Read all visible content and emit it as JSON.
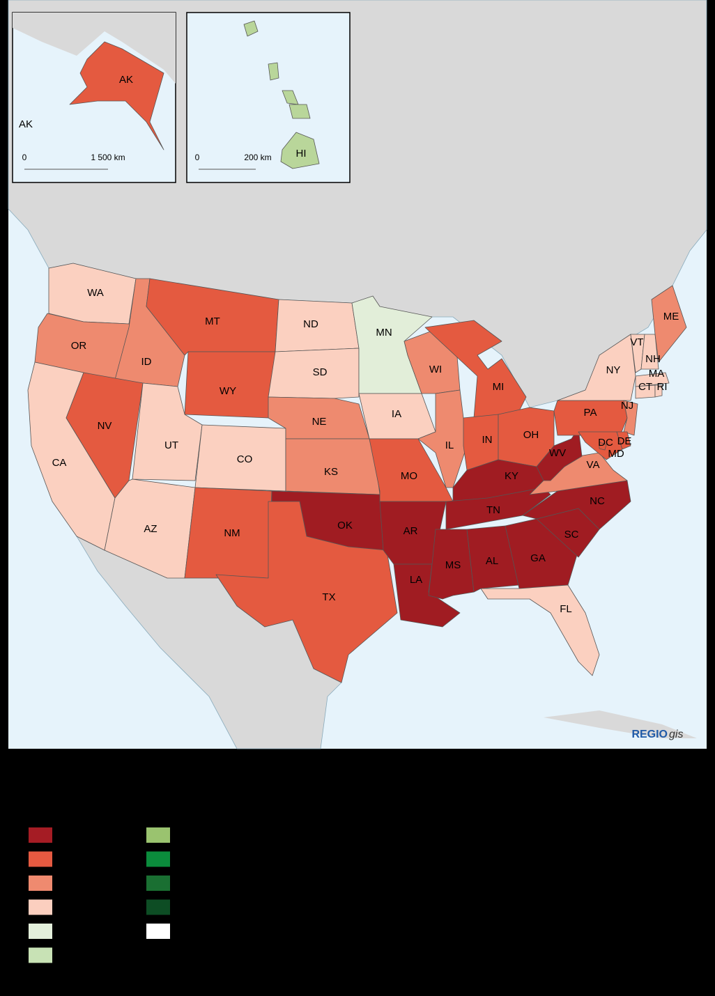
{
  "alaska_inset": {
    "label": "AK",
    "scale_start": "0",
    "scale_end": "1 500 km"
  },
  "hawaii_inset": {
    "scale_start": "0",
    "scale_end": "200 km"
  },
  "states": [
    {
      "label": "WA",
      "color": "#fbd0c0"
    },
    {
      "label": "OR",
      "color": "#ee8a6f"
    },
    {
      "label": "CA",
      "color": "#fbd0c0"
    },
    {
      "label": "ID",
      "color": "#ee8a6f"
    },
    {
      "label": "NV",
      "color": "#e45a40"
    },
    {
      "label": "MT",
      "color": "#e45a40"
    },
    {
      "label": "WY",
      "color": "#e45a40"
    },
    {
      "label": "UT",
      "color": "#fbd0c0"
    },
    {
      "label": "CO",
      "color": "#fbd0c0"
    },
    {
      "label": "AZ",
      "color": "#fbd0c0"
    },
    {
      "label": "NM",
      "color": "#e45a40"
    },
    {
      "label": "ND",
      "color": "#fbd0c0"
    },
    {
      "label": "SD",
      "color": "#fbd0c0"
    },
    {
      "label": "NE",
      "color": "#ee8a6f"
    },
    {
      "label": "KS",
      "color": "#ee8a6f"
    },
    {
      "label": "OK",
      "color": "#a01c22"
    },
    {
      "label": "TX",
      "color": "#e45a40"
    },
    {
      "label": "MN",
      "color": "#e2eed9"
    },
    {
      "label": "IA",
      "color": "#fbd0c0"
    },
    {
      "label": "MO",
      "color": "#e45a40"
    },
    {
      "label": "AR",
      "color": "#a01c22"
    },
    {
      "label": "LA",
      "color": "#a01c22"
    },
    {
      "label": "WI",
      "color": "#ee8a6f"
    },
    {
      "label": "IL",
      "color": "#ee8a6f"
    },
    {
      "label": "MI",
      "color": "#e45a40"
    },
    {
      "label": "IN",
      "color": "#e45a40"
    },
    {
      "label": "OH",
      "color": "#e45a40"
    },
    {
      "label": "KY",
      "color": "#a01c22"
    },
    {
      "label": "TN",
      "color": "#a01c22"
    },
    {
      "label": "MS",
      "color": "#a01c22"
    },
    {
      "label": "AL",
      "color": "#a01c22"
    },
    {
      "label": "GA",
      "color": "#a01c22"
    },
    {
      "label": "FL",
      "color": "#fbd0c0"
    },
    {
      "label": "SC",
      "color": "#a01c22"
    },
    {
      "label": "NC",
      "color": "#a01c22"
    },
    {
      "label": "VA",
      "color": "#ee8a6f"
    },
    {
      "label": "WV",
      "color": "#a01c22"
    },
    {
      "label": "PA",
      "color": "#e45a40"
    },
    {
      "label": "NY",
      "color": "#fbd0c0"
    },
    {
      "label": "VT",
      "color": "#fbd0c0"
    },
    {
      "label": "NH",
      "color": "#fbd0c0"
    },
    {
      "label": "ME",
      "color": "#ee8a6f"
    },
    {
      "label": "MA",
      "color": "#fbd0c0"
    },
    {
      "label": "CT",
      "color": "#fbd0c0"
    },
    {
      "label": "RI",
      "color": "#fbd0c0"
    },
    {
      "label": "NJ",
      "color": "#ee8a6f"
    },
    {
      "label": "MD",
      "color": "#e45a40"
    },
    {
      "label": "DE",
      "color": "#e45a40"
    },
    {
      "label": "DC",
      "color": "#e45a40"
    },
    {
      "label": "AK",
      "color": "#e45a40"
    },
    {
      "label": "HI",
      "color": "#b9d69a"
    }
  ],
  "brand": {
    "bold": "REGIO",
    "italic": "gis"
  },
  "legend": {
    "colors": [
      "#a51c24",
      "#e55a41",
      "#ef8a6f",
      "#fbcfbf",
      "#e3efdb",
      "#c8e2b5",
      "#9ac36f",
      "#0b8c3c",
      "#1a6f32",
      "#0d4d24",
      "#ffffff"
    ]
  }
}
